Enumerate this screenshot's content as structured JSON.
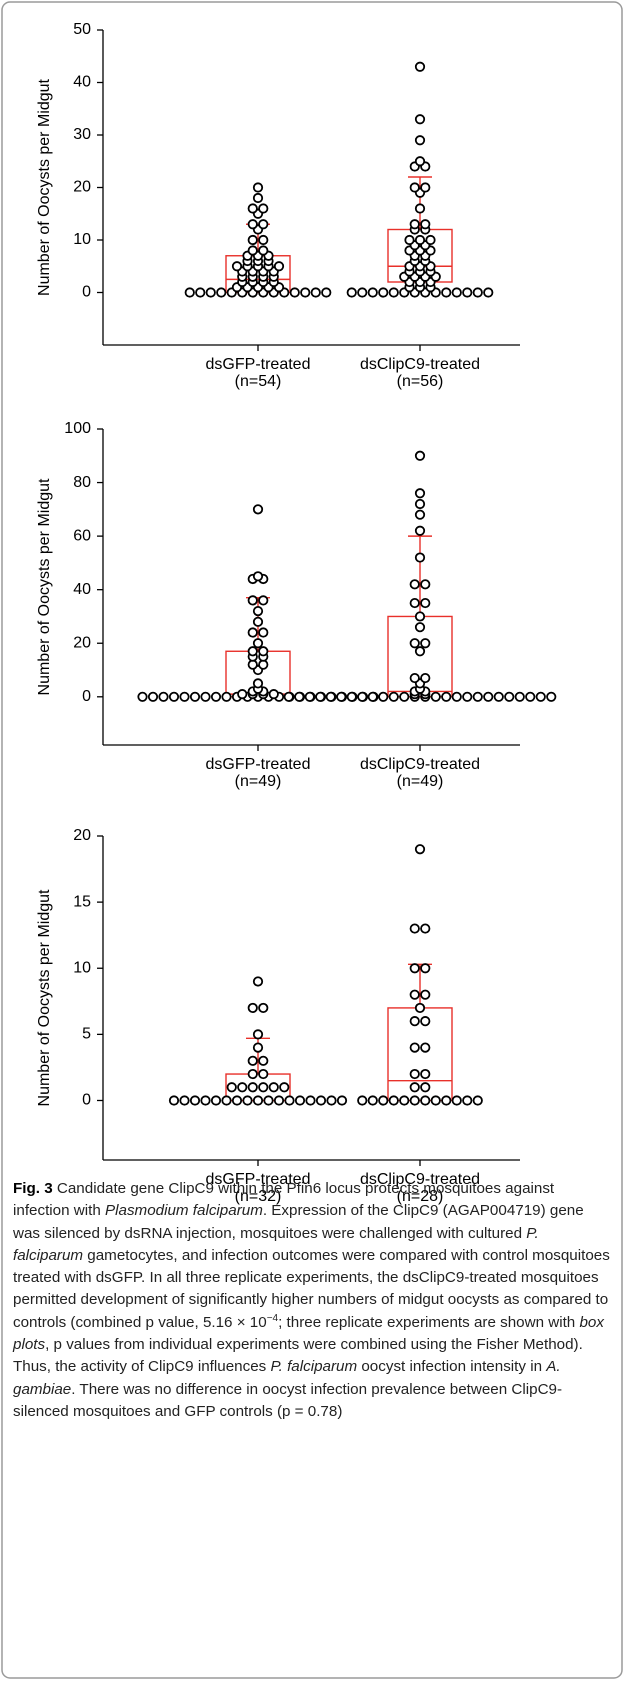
{
  "chart_data": [
    {
      "type": "box",
      "ylabel": "Number of Oocysts per Midgut",
      "categories": [
        "dsGFP-treated",
        "dsClipC9-treated"
      ],
      "category_notes": [
        "(n=54)",
        "(n=56)"
      ],
      "groups": [
        {
          "values": [
            0,
            0,
            0,
            0,
            0,
            0,
            0,
            0,
            0,
            0,
            0,
            0,
            0,
            0,
            1,
            1,
            1,
            1,
            1,
            2,
            2,
            2,
            2,
            3,
            3,
            3,
            3,
            4,
            4,
            4,
            4,
            5,
            5,
            5,
            5,
            5,
            6,
            6,
            6,
            7,
            7,
            7,
            8,
            8,
            10,
            10,
            12,
            13,
            13,
            15,
            16,
            16,
            18,
            20
          ],
          "q1": 0,
          "median": 2.5,
          "q3": 7,
          "whisker": 13
        },
        {
          "values": [
            0,
            0,
            0,
            0,
            0,
            0,
            0,
            0,
            0,
            0,
            0,
            0,
            0,
            0,
            1,
            1,
            1,
            2,
            2,
            2,
            3,
            3,
            3,
            3,
            4,
            4,
            4,
            5,
            5,
            5,
            6,
            6,
            7,
            7,
            8,
            8,
            8,
            9,
            9,
            10,
            10,
            10,
            12,
            12,
            13,
            13,
            16,
            19,
            20,
            20,
            24,
            24,
            25,
            29,
            33,
            43
          ],
          "q1": 2,
          "median": 5,
          "q3": 12,
          "whisker": 22
        }
      ],
      "ylim": [
        -10,
        50
      ],
      "yticks": [
        0,
        10,
        20,
        30,
        40,
        50
      ],
      "box_color": "#e8302a",
      "point_color": "#000000"
    },
    {
      "type": "box",
      "ylabel": "Number of Oocysts per Midgut",
      "categories": [
        "dsGFP-treated",
        "dsClipC9-treated"
      ],
      "category_notes": [
        "(n=49)",
        "(n=49)"
      ],
      "groups": [
        {
          "values": [
            0,
            0,
            0,
            0,
            0,
            0,
            0,
            0,
            0,
            0,
            0,
            0,
            0,
            0,
            0,
            0,
            0,
            0,
            0,
            0,
            0,
            0,
            0,
            1,
            1,
            1,
            1,
            2,
            2,
            3,
            5,
            10,
            12,
            12,
            15,
            15,
            17,
            17,
            20,
            24,
            24,
            28,
            32,
            36,
            36,
            44,
            44,
            45,
            70
          ],
          "q1": 0,
          "median": 1,
          "q3": 17,
          "whisker": 37
        },
        {
          "values": [
            0,
            0,
            0,
            0,
            0,
            0,
            0,
            0,
            0,
            0,
            0,
            0,
            0,
            0,
            0,
            0,
            0,
            0,
            0,
            0,
            0,
            0,
            0,
            0,
            0,
            0,
            1,
            1,
            2,
            2,
            3,
            5,
            7,
            7,
            17,
            20,
            20,
            26,
            30,
            35,
            35,
            42,
            42,
            52,
            62,
            68,
            72,
            76,
            90
          ],
          "q1": 0,
          "median": 2,
          "q3": 30,
          "whisker": 60
        }
      ],
      "ylim": [
        -18,
        100
      ],
      "yticks": [
        0,
        20,
        40,
        60,
        80,
        100
      ],
      "box_color": "#e8302a",
      "point_color": "#000000"
    },
    {
      "type": "box",
      "ylabel": "Number of Oocysts per Midgut",
      "categories": [
        "dsGFP-treated",
        "dsClipC9-treated"
      ],
      "category_notes": [
        "(n=32)",
        "(n=28)"
      ],
      "groups": [
        {
          "values": [
            0,
            0,
            0,
            0,
            0,
            0,
            0,
            0,
            0,
            0,
            0,
            0,
            0,
            0,
            0,
            0,
            0,
            1,
            1,
            1,
            1,
            1,
            1,
            2,
            2,
            3,
            3,
            4,
            5,
            7,
            7,
            9
          ],
          "q1": 0,
          "median": 0,
          "q3": 2,
          "whisker": 4.7
        },
        {
          "values": [
            0,
            0,
            0,
            0,
            0,
            0,
            0,
            0,
            0,
            0,
            0,
            0,
            1,
            1,
            2,
            2,
            4,
            4,
            6,
            6,
            7,
            8,
            8,
            10,
            10,
            13,
            13,
            19
          ],
          "q1": 0,
          "median": 1.5,
          "q3": 7,
          "whisker": 10.3
        }
      ],
      "ylim": [
        -4.5,
        20
      ],
      "yticks": [
        0,
        5,
        10,
        15,
        20
      ],
      "box_color": "#e8302a",
      "point_color": "#000000"
    }
  ],
  "caption": {
    "parts": [
      "Fig. 3",
      "  Candidate gene ClipC9 within the Pfin6 locus protects mosquitoes against infection with ",
      "Plasmodium falciparum",
      ". Expression of the ClipC9 (AGAP004719) gene was silenced by dsRNA injection, mosquitoes were challenged with cultured ",
      "P. falciparum",
      " gametocytes, and infection outcomes were compared with control mosquitoes treated with dsGFP. In all three replicate experiments, the dsClipC9-treated mosquitoes permitted development of significantly higher numbers of midgut oocysts as compared to controls (combined p value, 5.16 × 10",
      "−4",
      "; three replicate experiments are shown with ",
      "box plots",
      ", p values from individual experiments were combined using the Fisher Method). Thus, the activity of ClipC9 influences ",
      "P. falciparum",
      " oocyst infection intensity in ",
      "A. gambiae",
      ". There was no difference in oocyst infection prevalence between ClipC9-silenced mosquitoes and GFP controls (p = 0.78)"
    ]
  }
}
